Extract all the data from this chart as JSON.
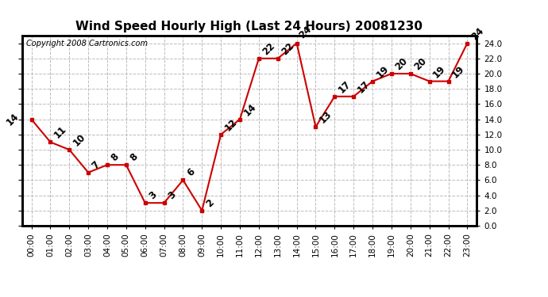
{
  "title": "Wind Speed Hourly High (Last 24 Hours) 20081230",
  "copyright": "Copyright 2008 Cartronics.com",
  "hours": [
    "00:00",
    "01:00",
    "02:00",
    "03:00",
    "04:00",
    "05:00",
    "06:00",
    "07:00",
    "08:00",
    "09:00",
    "10:00",
    "11:00",
    "12:00",
    "13:00",
    "14:00",
    "15:00",
    "16:00",
    "17:00",
    "18:00",
    "19:00",
    "20:00",
    "21:00",
    "22:00",
    "23:00"
  ],
  "values": [
    14,
    11,
    10,
    7,
    8,
    8,
    3,
    3,
    6,
    2,
    12,
    14,
    22,
    22,
    24,
    13,
    17,
    17,
    19,
    20,
    20,
    19,
    19,
    24
  ],
  "line_color": "#cc0000",
  "marker_color": "#cc0000",
  "bg_color": "#ffffff",
  "grid_color": "#bbbbbb",
  "ylim": [
    0.0,
    25.0
  ],
  "ytick_values": [
    0.0,
    2.0,
    4.0,
    6.0,
    8.0,
    10.0,
    12.0,
    14.0,
    16.0,
    18.0,
    20.0,
    22.0,
    24.0
  ],
  "label_fontsize": 7.5,
  "title_fontsize": 11,
  "copyright_fontsize": 7.0,
  "annot_fontsize": 8.5
}
